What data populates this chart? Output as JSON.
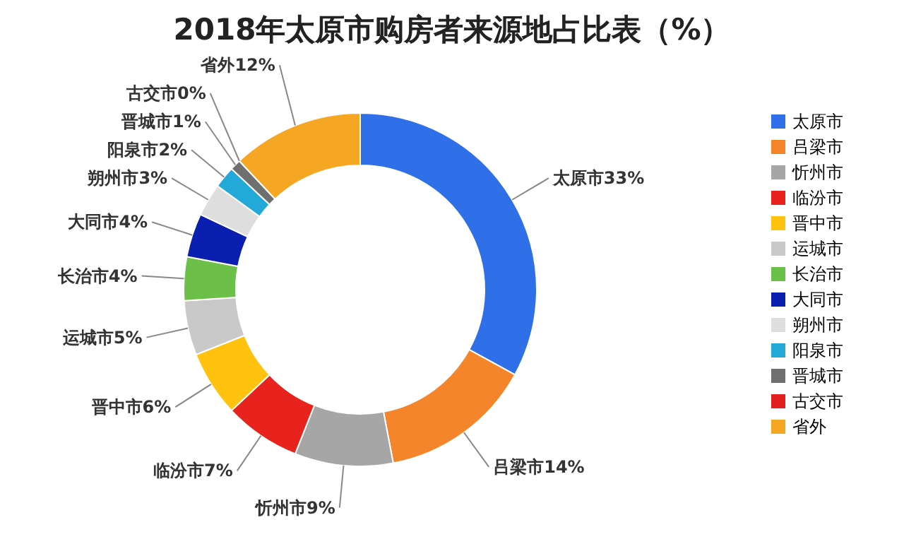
{
  "chart_data": {
    "type": "donut",
    "title": "2018年太原市购房者来源地占比表（%）",
    "categories": [
      "太原市",
      "吕梁市",
      "忻州市",
      "临汾市",
      "晋中市",
      "运城市",
      "长治市",
      "大同市",
      "朔州市",
      "阳泉市",
      "晋城市",
      "古交市",
      "省外"
    ],
    "values": [
      33,
      14,
      9,
      7,
      6,
      5,
      4,
      4,
      3,
      2,
      1,
      0,
      12
    ],
    "value_labels": [
      "33%",
      "14%",
      "9%",
      "7%",
      "6%",
      "5%",
      "4%",
      "4%",
      "3%",
      "2%",
      "1%",
      "0%",
      "12%"
    ],
    "colors": [
      "#2f6fe8",
      "#f5852a",
      "#a6a6a6",
      "#e8231d",
      "#ffc20e",
      "#c9c9c9",
      "#6cc04a",
      "#0a1fb0",
      "#dedede",
      "#22a9d8",
      "#6f6f6f",
      "#e02020",
      "#f5a623"
    ],
    "legend": "right"
  }
}
